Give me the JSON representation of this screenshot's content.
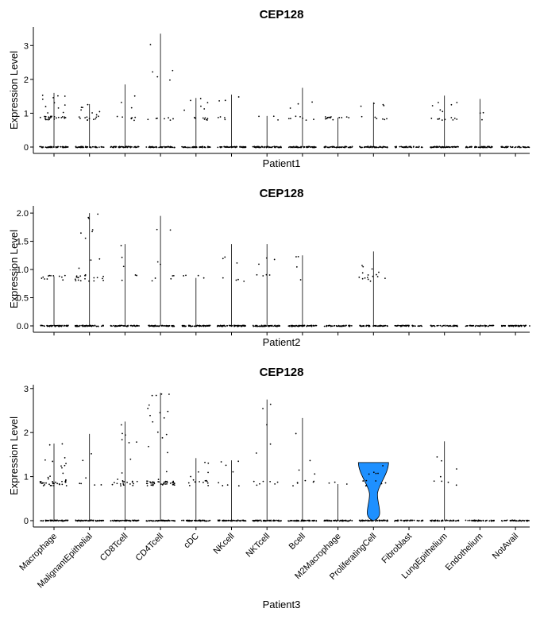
{
  "chart_data": [
    {
      "type": "violin",
      "title": "CEP128",
      "xlabel": "Patient1",
      "ylabel": "Expression Level",
      "ylim": [
        0,
        3.5
      ],
      "yticks": [
        0,
        1,
        2,
        3
      ],
      "ytick_labels": [
        "0",
        "1",
        "2",
        "3"
      ],
      "categories": [
        "Macrophage",
        "MalignantEpithelial",
        "CD8Tcell",
        "CD4Tcell",
        "cDC",
        "NKcell",
        "NKTcell",
        "Bcell",
        "M2Macrophage",
        "ProliferatingCell",
        "Fibroblast",
        "LungEpithelium",
        "Endothelium",
        "NotAvail"
      ],
      "show_category_labels": false,
      "max_values": [
        1.6,
        1.27,
        1.85,
        3.35,
        1.45,
        1.55,
        0.92,
        1.75,
        0.87,
        1.32,
        0.0,
        1.52,
        1.42,
        0.0
      ],
      "nonzero_density": [
        35,
        16,
        8,
        10,
        12,
        5,
        1,
        8,
        12,
        8,
        0,
        14,
        1,
        0
      ],
      "colors": {
        "points": "#000000",
        "violin": "#000000"
      }
    },
    {
      "type": "violin",
      "title": "CEP128",
      "xlabel": "Patient2",
      "ylabel": "Expression Level",
      "ylim": [
        0,
        2.1
      ],
      "yticks": [
        0,
        0.5,
        1,
        1.5,
        2
      ],
      "ytick_labels": [
        "0.0",
        "0.5",
        "1.0",
        "1.5",
        "2.0"
      ],
      "categories": [
        "Macrophage",
        "MalignantEpithelial",
        "CD8Tcell",
        "CD4Tcell",
        "cDC",
        "NKcell",
        "NKTcell",
        "Bcell",
        "M2Macrophage",
        "ProliferatingCell",
        "Fibroblast",
        "LungEpithelium",
        "Endothelium",
        "NotAvail"
      ],
      "show_category_labels": false,
      "max_values": [
        0.88,
        2.0,
        1.45,
        1.95,
        0.85,
        1.45,
        1.45,
        1.25,
        0.0,
        1.32,
        0.0,
        0.0,
        0.0,
        0.0
      ],
      "nonzero_density": [
        10,
        28,
        4,
        7,
        2,
        5,
        5,
        2,
        0,
        14,
        0,
        0,
        0,
        0
      ],
      "colors": {
        "points": "#000000",
        "violin": "#000000"
      }
    },
    {
      "type": "violin",
      "title": "CEP128",
      "xlabel": "Patient3",
      "ylabel": "Expression Level",
      "ylim": [
        0,
        3.05
      ],
      "yticks": [
        0,
        1,
        2,
        3
      ],
      "ytick_labels": [
        "0",
        "1",
        "2",
        "3"
      ],
      "categories": [
        "Macrophage",
        "MalignantEpithelial",
        "CD8Tcell",
        "CD4Tcell",
        "cDC",
        "NKcell",
        "NKTcell",
        "Bcell",
        "M2Macrophage",
        "ProliferatingCell",
        "Fibroblast",
        "LungEpithelium",
        "Endothelium",
        "NotAvail"
      ],
      "show_category_labels": true,
      "max_values": [
        1.75,
        1.97,
        2.25,
        2.9,
        1.42,
        1.37,
        2.75,
        2.33,
        0.83,
        1.32,
        0.0,
        1.8,
        0.0,
        0.0
      ],
      "nonzero_density": [
        40,
        5,
        25,
        55,
        14,
        6,
        10,
        8,
        1,
        10,
        0,
        6,
        0,
        0
      ],
      "filled_violin": {
        "category": "ProliferatingCell",
        "color": "#1E90FF"
      },
      "colors": {
        "points": "#000000",
        "violin": "#000000"
      }
    }
  ]
}
